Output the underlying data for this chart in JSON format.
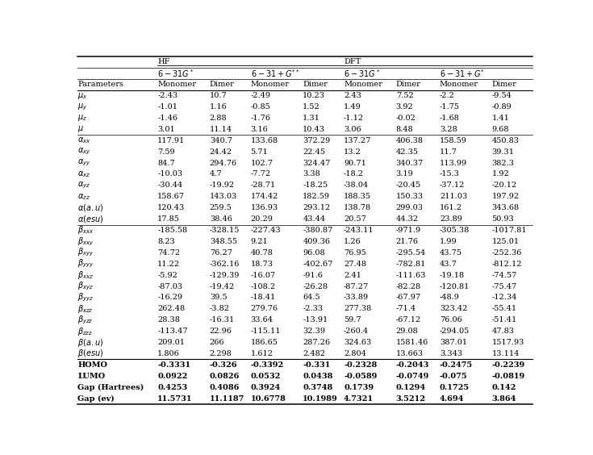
{
  "param_labels": [
    "$\\mu_x$",
    "$\\mu_y$",
    "$\\mu_z$",
    "$\\mu$",
    "$\\alpha_{xx}$",
    "$\\alpha_{xy}$",
    "$\\alpha_{yy}$",
    "$\\alpha_{xz}$",
    "$\\alpha_{yz}$",
    "$\\alpha_{zz}$",
    "$\\alpha(a.u)$",
    "$\\alpha(esu)$",
    "$\\beta_{xxx}$",
    "$\\beta_{xxy}$",
    "$\\beta_{xyy}$",
    "$\\beta_{yyy}$",
    "$\\beta_{xxz}$",
    "$\\beta_{xyz}$",
    "$\\beta_{yyz}$",
    "$\\beta_{xzz}$",
    "$\\beta_{yzz}$",
    "$\\beta_{zzz}$",
    "$\\beta_{(}a.u)$",
    "$\\beta_{(}esu)$",
    "HOMO",
    "LUMO",
    "Gap (Hartrees)",
    "Gap (ev)"
  ],
  "param_labels_italic": [
    "$\\mu_x$",
    "$\\mu_y$",
    "$\\mu_z$",
    "$\\mu$",
    "$\\alpha_{xx}$",
    "$\\alpha_{xy}$",
    "$\\alpha_{yy}$",
    "$\\alpha_{xz}$",
    "$\\alpha_{yz}$",
    "$\\alpha_{zz}$",
    "$\\alpha(a.u)$",
    "$\\alpha(esu)$",
    "$\\beta_{xxx}$",
    "$\\beta_{xxy}$",
    "$\\beta_{xyy}$",
    "$\\beta_{yyy}$",
    "$\\beta_{xxz}$",
    "$\\beta_{xyz}$",
    "$\\beta_{yyz}$",
    "$\\beta_{xzz}$",
    "$\\beta_{yzz}$",
    "$\\beta_{zzz}$",
    "$\\beta_{}(a.u)$",
    "$\\beta_{}(esu)$"
  ],
  "rows": [
    [
      "-2.43",
      "10.7",
      "-2.49",
      "10.23",
      "2.43",
      "7.52",
      "-2.2",
      "-9.54"
    ],
    [
      "-1.01",
      "1.16",
      "-0.85",
      "1.52",
      "1.49",
      "3.92",
      "-1.75",
      "-0.89"
    ],
    [
      "-1.46",
      "2.88",
      "-1.76",
      "1.31",
      "-1.12",
      "-0.02",
      "-1.68",
      "1.41"
    ],
    [
      "3.01",
      "11.14",
      "3.16",
      "10.43",
      "3.06",
      "8.48",
      "3.28",
      "9.68"
    ],
    [
      "117.91",
      "340.7",
      "133.68",
      "372.29",
      "137.27",
      "406.38",
      "158.59",
      "450.83"
    ],
    [
      "7.59",
      "24.42",
      "5.71",
      "22.45",
      "13.2",
      "42.35",
      "11.7",
      "39.31"
    ],
    [
      "84.7",
      "294.76",
      "102.7",
      "324.47",
      "90.71",
      "340.37",
      "113.99",
      "382.3"
    ],
    [
      "-10.03",
      "4.7",
      "-7.72",
      "3.38",
      "-18.2",
      "3.19",
      "-15.3",
      "1.92"
    ],
    [
      "-30.44",
      "-19.92",
      "-28.71",
      "-18.25",
      "-38.04",
      "-20.45",
      "-37.12",
      "-20.12"
    ],
    [
      "158.67",
      "143.03",
      "174.42",
      "182.59",
      "188.35",
      "150.33",
      "211.03",
      "197.92"
    ],
    [
      "120.43",
      "259.5",
      "136.93",
      "293.12",
      "138.78",
      "299.03",
      "161.2",
      "343.68"
    ],
    [
      "17.85",
      "38.46",
      "20.29",
      "43.44",
      "20.57",
      "44.32",
      "23.89",
      "50.93"
    ],
    [
      "-185.58",
      "-328.15",
      "-227.43",
      "-380.87",
      "-243.11",
      "-971.9",
      "-305.38",
      "-1017.81"
    ],
    [
      "8.23",
      "348.55",
      "9.21",
      "409.36",
      "1.26",
      "21.76",
      "1.99",
      "125.01"
    ],
    [
      "74.72",
      "76.27",
      "40.78",
      "96.08",
      "76.95",
      "-295.54",
      "43.75",
      "-252.36"
    ],
    [
      "11.22",
      "-362.16",
      "18.73",
      "-402.67",
      "27.48",
      "-782.81",
      "43.7",
      "-812.12"
    ],
    [
      "-5.92",
      "-129.39",
      "-16.07",
      "-91.6",
      "2.41",
      "-111.63",
      "-19.18",
      "-74.57"
    ],
    [
      "-87.03",
      "-19.42",
      "-108.2",
      "-26.28",
      "-87.27",
      "-82.28",
      "-120.81",
      "-75.47"
    ],
    [
      "-16.29",
      "39.5",
      "-18.41",
      "64.5",
      "-33.89",
      "-67.97",
      "-48.9",
      "-12.34"
    ],
    [
      "262.48",
      "-3.82",
      "279.76",
      "-2.33",
      "277.38",
      "-71.4",
      "323.42",
      "-55.41"
    ],
    [
      "28.38",
      "-16.31",
      "33.64",
      "-13.91",
      "59.7",
      "-67.12",
      "76.06",
      "-51.41"
    ],
    [
      "-113.47",
      "22.96",
      "-115.11",
      "32.39",
      "-260.4",
      "29.08",
      "-294.05",
      "47.83"
    ],
    [
      "209.01",
      "266",
      "186.65",
      "287.26",
      "324.63",
      "1581.46",
      "387.01",
      "1517.93"
    ],
    [
      "1.806",
      "2.298",
      "1.612",
      "2.482",
      "2.804",
      "13.663",
      "3.343",
      "13.114"
    ],
    [
      "-0.3331",
      "-0.326",
      "-0.3392",
      "-0.331",
      "-0.2328",
      "-0.2043",
      "-0.2475",
      "-0.2239"
    ],
    [
      "0.0922",
      "0.0826",
      "0.0532",
      "0.0438",
      "-0.0589",
      "-0.0749",
      "-0.075",
      "-0.0819"
    ],
    [
      "0.4253",
      "0.4086",
      "0.3924",
      "0.3748",
      "0.1739",
      "0.1294",
      "0.1725",
      "0.142"
    ],
    [
      "11.5731",
      "11.1187",
      "10.6778",
      "10.1989",
      "4.7321",
      "3.5212",
      "4.694",
      "3.864"
    ]
  ],
  "hline_after_data_rows": [
    3,
    11,
    23
  ],
  "bold_rows": [
    24,
    25,
    26,
    27
  ],
  "font_size": 7.0
}
